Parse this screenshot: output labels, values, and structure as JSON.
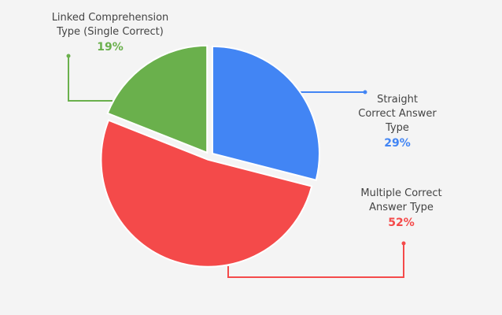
{
  "chart_data": {
    "type": "pie",
    "title": "",
    "slices": [
      {
        "label_lines": [
          "Linked Comprehension",
          "Type (Single Correct)"
        ],
        "value": 19,
        "percent_label": "19%",
        "color": "#6ab04c"
      },
      {
        "label_lines": [
          "Straight",
          "Correct Answer",
          "Type"
        ],
        "value": 29,
        "percent_label": "29%",
        "color": "#4285f4"
      },
      {
        "label_lines": [
          "Multiple Correct",
          "Answer Type"
        ],
        "value": 52,
        "percent_label": "52%",
        "color": "#f44a4a"
      }
    ],
    "legend": "none",
    "labels": "callouts with leader lines"
  }
}
